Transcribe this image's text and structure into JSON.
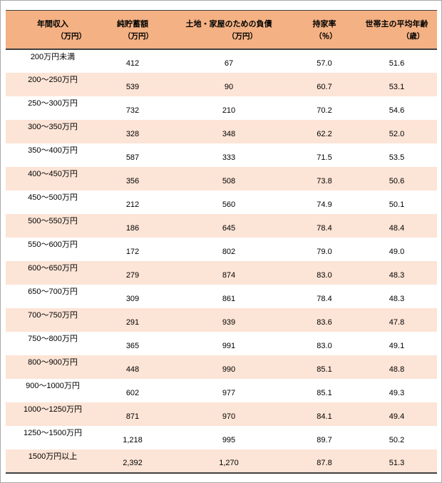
{
  "colors": {
    "header_bg": "#f4b183",
    "band_bg": "#fce4d6",
    "row_bg": "#ffffff",
    "rule_dark": "#404040",
    "frame_border": "#a9a9a9",
    "text": "#000000"
  },
  "chart_data": {
    "type": "table",
    "columns": [
      {
        "key": "annual-income",
        "label": "年間収入",
        "unit": "（万円）"
      },
      {
        "key": "net-savings",
        "label": "純貯蓄額",
        "unit": "（万円）"
      },
      {
        "key": "housing-debt",
        "label": "土地・家屋のための負債",
        "unit": "（万円）"
      },
      {
        "key": "ownership-rate",
        "label": "持家率",
        "unit": "（％）"
      },
      {
        "key": "avg-age",
        "label": "世帯主の平均年齢",
        "unit": "（歳）"
      }
    ],
    "rows": [
      [
        "200万円未満",
        "412",
        "67",
        "57.0",
        "51.6"
      ],
      [
        "200～250万円",
        "539",
        "90",
        "60.7",
        "53.1"
      ],
      [
        "250～300万円",
        "732",
        "210",
        "70.2",
        "54.6"
      ],
      [
        "300～350万円",
        "328",
        "348",
        "62.2",
        "52.0"
      ],
      [
        "350～400万円",
        "587",
        "333",
        "71.5",
        "53.5"
      ],
      [
        "400～450万円",
        "356",
        "508",
        "73.8",
        "50.6"
      ],
      [
        "450～500万円",
        "212",
        "560",
        "74.9",
        "50.1"
      ],
      [
        "500～550万円",
        "186",
        "645",
        "78.4",
        "48.4"
      ],
      [
        "550～600万円",
        "172",
        "802",
        "79.0",
        "49.0"
      ],
      [
        "600～650万円",
        "279",
        "874",
        "83.0",
        "48.3"
      ],
      [
        "650～700万円",
        "309",
        "861",
        "78.4",
        "48.3"
      ],
      [
        "700～750万円",
        "291",
        "939",
        "83.6",
        "47.8"
      ],
      [
        "750～800万円",
        "365",
        "991",
        "83.0",
        "49.1"
      ],
      [
        "800～900万円",
        "448",
        "990",
        "85.1",
        "48.8"
      ],
      [
        "900～1000万円",
        "602",
        "977",
        "85.1",
        "49.3"
      ],
      [
        "1000～1250万円",
        "871",
        "970",
        "84.1",
        "49.4"
      ],
      [
        "1250～1500万円",
        "1,218",
        "995",
        "89.7",
        "50.2"
      ],
      [
        "1500万円以上",
        "2,392",
        "1,270",
        "87.8",
        "51.3"
      ]
    ]
  }
}
